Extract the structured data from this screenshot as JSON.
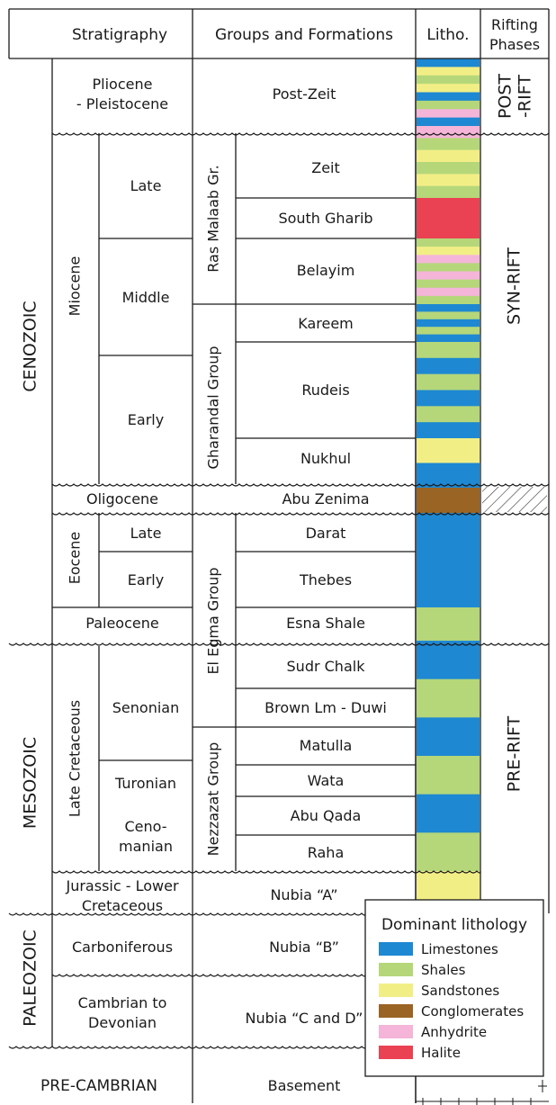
{
  "headers": {
    "stratigraphy": "Stratigraphy",
    "groups": "Groups and Formations",
    "litho": "Litho.",
    "rifting": [
      "Rifting",
      "Phases"
    ]
  },
  "eras": [
    {
      "id": "cenozoic",
      "label": "CENOZOIC"
    },
    {
      "id": "mesozoic",
      "label": "MESOZOIC"
    },
    {
      "id": "paleozoic",
      "label": "PALEOZOIC"
    }
  ],
  "stratigraphy": {
    "pliocene": [
      "Pliocene",
      "- Pleistocene"
    ],
    "miocene": "Miocene",
    "miocene_late": "Late",
    "miocene_middle": "Middle",
    "miocene_early": "Early",
    "oligocene": "Oligocene",
    "eocene": "Eocene",
    "eocene_late": "Late",
    "eocene_early": "Early",
    "paleocene": "Paleocene",
    "late_cretaceous": "Late Cretaceous",
    "senonian": "Senonian",
    "turonian": "Turonian",
    "cenomanian": [
      "Ceno-",
      "manian"
    ],
    "jurassic": [
      "Jurassic - Lower",
      "Cretaceous"
    ],
    "carboniferous": "Carboniferous",
    "cambrian": [
      "Cambrian to",
      "Devonian"
    ],
    "precambrian": "PRE-CAMBRIAN"
  },
  "groups": {
    "ras_malaab": "Ras Malaab Gr.",
    "gharandal": "Gharandal Group",
    "el_egma": "El Egma Group",
    "nezzazat": "Nezzazat Group"
  },
  "formations": {
    "post_zeit": "Post-Zeit",
    "zeit": "Zeit",
    "south_gharib": "South Gharib",
    "belayim": "Belayim",
    "kareem": "Kareem",
    "rudeis": "Rudeis",
    "nukhul": "Nukhul",
    "abu_zenima": "Abu Zenima",
    "darat": "Darat",
    "thebes": "Thebes",
    "esna_shale": "Esna Shale",
    "sudr_chalk": "Sudr Chalk",
    "brown_lm_duwi": "Brown Lm - Duwi",
    "matulla": "Matulla",
    "wata": "Wata",
    "abu_qada": "Abu Qada",
    "raha": "Raha",
    "nubia_a": "Nubia “A”",
    "nubia_b": "Nubia “B”",
    "nubia_cd": "Nubia “C and D”",
    "basement": "Basement"
  },
  "rifting": {
    "post": [
      "POST",
      "-RIFT"
    ],
    "syn": "SYN-RIFT",
    "pre": "PRE-RIFT"
  },
  "legend": {
    "title": "Dominant lithology",
    "items": [
      {
        "key": "L",
        "label": "Limestones",
        "color": "#1e88d2"
      },
      {
        "key": "S",
        "label": "Shales",
        "color": "#b5d77a"
      },
      {
        "key": "Y",
        "label": "Sandstones",
        "color": "#f2ee86"
      },
      {
        "key": "C",
        "label": "Conglomerates",
        "color": "#9a6424"
      },
      {
        "key": "A",
        "label": "Anhydrite",
        "color": "#f4b5d8"
      },
      {
        "key": "H",
        "label": "Halite",
        "color": "#ea4253"
      }
    ]
  },
  "lithology_sequence": [
    "L",
    "Y",
    "S",
    "Y",
    "L",
    "S",
    "A",
    "L",
    "A",
    "S",
    "Y",
    "S",
    "Y",
    "S",
    "H",
    "S",
    "Y",
    "A",
    "S",
    "A",
    "S",
    "A",
    "S",
    "L",
    "S",
    "L",
    "S",
    "L",
    "S",
    "L",
    "S",
    "L",
    "S",
    "L",
    "Y",
    "L",
    "C",
    "L",
    "S",
    "L",
    "S",
    "L",
    "S",
    "L",
    "S",
    "Y"
  ]
}
